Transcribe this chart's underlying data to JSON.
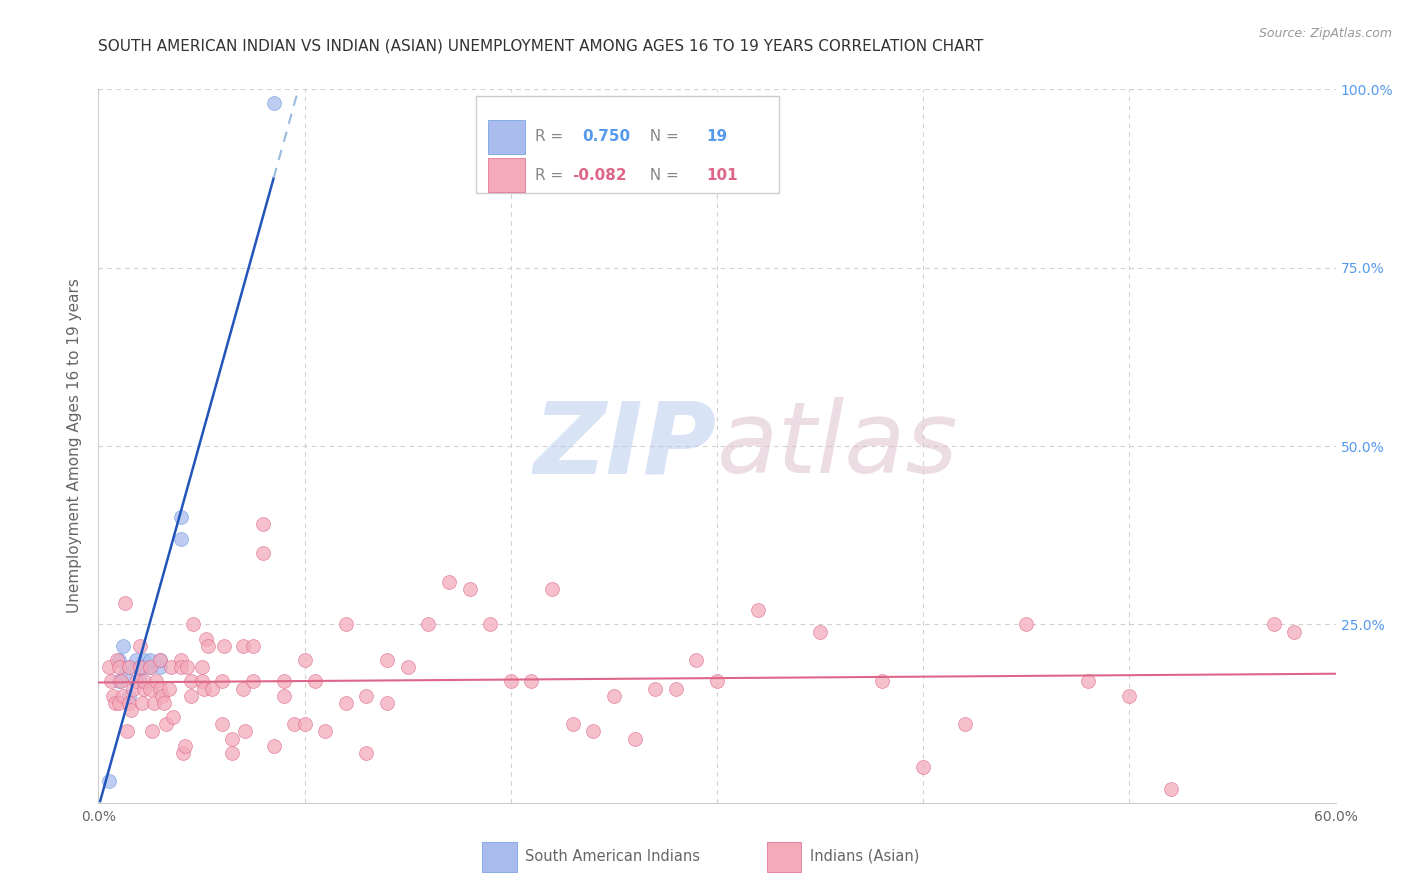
{
  "title": "SOUTH AMERICAN INDIAN VS INDIAN (ASIAN) UNEMPLOYMENT AMONG AGES 16 TO 19 YEARS CORRELATION CHART",
  "source": "Source: ZipAtlas.com",
  "ylabel": "Unemployment Among Ages 16 to 19 years",
  "xlim": [
    0.0,
    0.6
  ],
  "ylim": [
    0.0,
    1.0
  ],
  "blue_R": 0.75,
  "blue_N": 19,
  "pink_R": -0.082,
  "pink_N": 101,
  "legend_label_blue": "South American Indians",
  "legend_label_pink": "Indians (Asian)",
  "background_color": "#ffffff",
  "grid_color": "#d0d0d0",
  "blue_color": "#6699dd",
  "blue_fill": "#aabbee",
  "pink_color": "#dd6688",
  "pink_fill": "#f4aabb",
  "blue_scatter_x": [
    0.005,
    0.01,
    0.01,
    0.012,
    0.013,
    0.015,
    0.015,
    0.018,
    0.02,
    0.02,
    0.022,
    0.022,
    0.025,
    0.025,
    0.03,
    0.03,
    0.04,
    0.04,
    0.085
  ],
  "blue_scatter_y": [
    0.03,
    0.17,
    0.2,
    0.22,
    0.18,
    0.15,
    0.19,
    0.2,
    0.17,
    0.19,
    0.2,
    0.19,
    0.19,
    0.2,
    0.19,
    0.2,
    0.37,
    0.4,
    0.98
  ],
  "pink_scatter_x": [
    0.005,
    0.006,
    0.007,
    0.008,
    0.009,
    0.01,
    0.01,
    0.011,
    0.012,
    0.013,
    0.014,
    0.015,
    0.015,
    0.016,
    0.017,
    0.018,
    0.02,
    0.02,
    0.021,
    0.022,
    0.022,
    0.025,
    0.025,
    0.026,
    0.027,
    0.028,
    0.03,
    0.03,
    0.031,
    0.032,
    0.033,
    0.034,
    0.035,
    0.036,
    0.04,
    0.04,
    0.041,
    0.042,
    0.043,
    0.045,
    0.045,
    0.046,
    0.05,
    0.05,
    0.051,
    0.052,
    0.053,
    0.055,
    0.06,
    0.06,
    0.061,
    0.065,
    0.065,
    0.07,
    0.07,
    0.071,
    0.075,
    0.075,
    0.08,
    0.08,
    0.085,
    0.09,
    0.09,
    0.095,
    0.1,
    0.1,
    0.105,
    0.11,
    0.12,
    0.12,
    0.13,
    0.13,
    0.14,
    0.14,
    0.15,
    0.16,
    0.17,
    0.18,
    0.19,
    0.2,
    0.21,
    0.22,
    0.23,
    0.24,
    0.25,
    0.26,
    0.27,
    0.28,
    0.29,
    0.3,
    0.32,
    0.35,
    0.38,
    0.4,
    0.42,
    0.45,
    0.48,
    0.5,
    0.52,
    0.57,
    0.58
  ],
  "pink_scatter_y": [
    0.19,
    0.17,
    0.15,
    0.14,
    0.2,
    0.19,
    0.14,
    0.17,
    0.15,
    0.28,
    0.1,
    0.19,
    0.14,
    0.13,
    0.16,
    0.17,
    0.19,
    0.22,
    0.14,
    0.16,
    0.17,
    0.19,
    0.16,
    0.1,
    0.14,
    0.17,
    0.16,
    0.2,
    0.15,
    0.14,
    0.11,
    0.16,
    0.19,
    0.12,
    0.2,
    0.19,
    0.07,
    0.08,
    0.19,
    0.15,
    0.17,
    0.25,
    0.17,
    0.19,
    0.16,
    0.23,
    0.22,
    0.16,
    0.17,
    0.11,
    0.22,
    0.07,
    0.09,
    0.16,
    0.22,
    0.1,
    0.22,
    0.17,
    0.39,
    0.35,
    0.08,
    0.15,
    0.17,
    0.11,
    0.2,
    0.11,
    0.17,
    0.1,
    0.14,
    0.25,
    0.15,
    0.07,
    0.2,
    0.14,
    0.19,
    0.25,
    0.31,
    0.3,
    0.25,
    0.17,
    0.17,
    0.3,
    0.11,
    0.1,
    0.15,
    0.09,
    0.16,
    0.16,
    0.2,
    0.17,
    0.27,
    0.24,
    0.17,
    0.05,
    0.11,
    0.25,
    0.17,
    0.15,
    0.02,
    0.25,
    0.24
  ]
}
